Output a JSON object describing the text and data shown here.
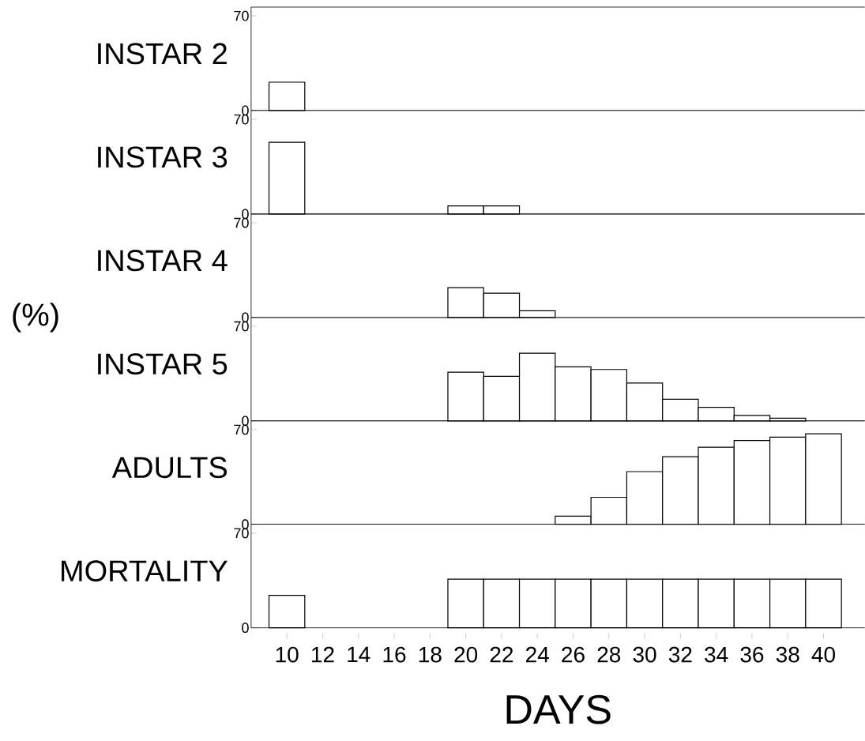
{
  "chart_data": [
    {
      "type": "bar",
      "ylabel": "INSTAR 2",
      "x": [
        10
      ],
      "values": [
        21
      ],
      "color": "#000000",
      "xlim": [
        8,
        42.3
      ],
      "ylim": [
        0,
        76.5
      ],
      "yticks": [
        0,
        70
      ],
      "tick_labels": "y"
    },
    {
      "type": "bar",
      "ylabel": "INSTAR 3",
      "x": [
        10,
        20,
        22
      ],
      "values": [
        53,
        6,
        6
      ],
      "color": "#000000",
      "xlim": [
        8,
        42.3
      ],
      "ylim": [
        0,
        76.5
      ],
      "yticks": [
        0,
        70
      ],
      "tick_labels": "y"
    },
    {
      "type": "bar",
      "ylabel": "INSTAR 4",
      "x": [
        20,
        22,
        24
      ],
      "values": [
        22,
        18,
        5
      ],
      "color": "#000000",
      "xlim": [
        8,
        42.3
      ],
      "ylim": [
        0,
        76.5
      ],
      "yticks": [
        0,
        70
      ],
      "tick_labels": "y"
    },
    {
      "type": "bar",
      "ylabel": "INSTAR 5",
      "annotations": [
        "(%)"
      ],
      "x": [
        20,
        22,
        24,
        26,
        28,
        30,
        32,
        34,
        36,
        38
      ],
      "values": [
        36,
        33,
        50,
        40,
        38,
        28,
        16,
        10,
        4,
        2
      ],
      "color": "#000000",
      "xlim": [
        8,
        42.3
      ],
      "ylim": [
        0,
        76.5
      ],
      "yticks": [
        0,
        70
      ],
      "tick_labels": "y"
    },
    {
      "type": "bar",
      "ylabel": "ADULTS",
      "x": [
        26,
        28,
        30,
        32,
        34,
        36,
        38,
        40
      ],
      "values": [
        6,
        20,
        39,
        50,
        57,
        62,
        64.5,
        67
      ],
      "color": "#000000",
      "xlim": [
        8,
        42.3
      ],
      "ylim": [
        0,
        76.5
      ],
      "yticks": [
        0,
        70
      ],
      "tick_labels": "y"
    },
    {
      "type": "bar",
      "ylabel": "MORTALITY",
      "xlabel": "DAYS",
      "x": [
        10,
        20,
        22,
        24,
        26,
        28,
        30,
        32,
        34,
        36,
        38,
        40
      ],
      "values": [
        24,
        36,
        36,
        36,
        36,
        36,
        36,
        36,
        36,
        36,
        36,
        36
      ],
      "color": "#000000",
      "xlim": [
        8,
        42.3
      ],
      "ylim": [
        0,
        76.5
      ],
      "yticks": [
        0,
        70
      ],
      "xticks": [
        10,
        12,
        14,
        16,
        18,
        20,
        22,
        24,
        26,
        28,
        30,
        32,
        34,
        36,
        38,
        40
      ]
    }
  ]
}
